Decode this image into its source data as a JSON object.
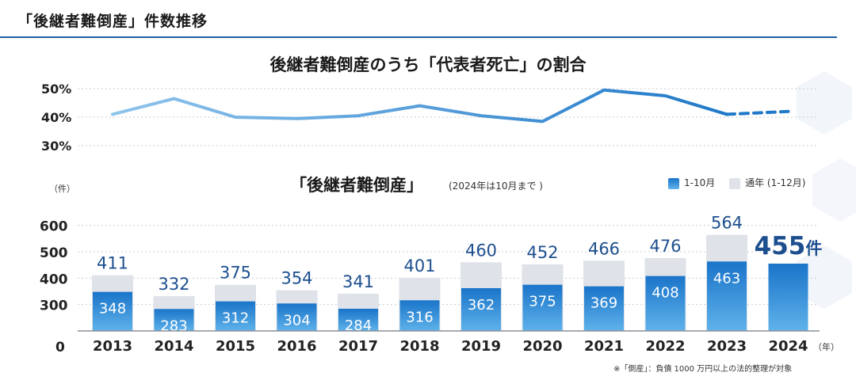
{
  "header": {
    "title": "「後継者難倒産」件数推移"
  },
  "colors": {
    "accent": "#1f5fa6",
    "fullYearBar": "#dfe2e8",
    "periodBarTop": "#1a74c9",
    "periodBarBottom": "#5fb2ea",
    "lineStart": "#8fc4ec",
    "lineEnd": "#1f78c8",
    "fullYearLabel": "#1d4f8f"
  },
  "chart_data": [
    {
      "type": "line",
      "title": "後継者難倒産のうち「代表者死亡」の割合",
      "x": [
        "2013",
        "2014",
        "2015",
        "2016",
        "2017",
        "2018",
        "2019",
        "2020",
        "2021",
        "2022",
        "2023",
        "2024"
      ],
      "values": [
        41,
        46.5,
        40,
        39.5,
        40.5,
        44,
        40.5,
        38.5,
        49.5,
        47.5,
        41,
        42
      ],
      "dashed_from_index": 10,
      "ylim": [
        30,
        50
      ],
      "yticks": [
        "50%",
        "40%",
        "30%"
      ],
      "grid": true
    },
    {
      "type": "bar",
      "title": "「後継者難倒産」",
      "title_note": "(2024年は10月まで )",
      "unit": "（件）",
      "categories": [
        "2013",
        "2014",
        "2015",
        "2016",
        "2017",
        "2018",
        "2019",
        "2020",
        "2021",
        "2022",
        "2023",
        "2024"
      ],
      "x_suffix": "（年）",
      "series": [
        {
          "name": "通年 (1-12月)",
          "values": [
            411,
            332,
            375,
            354,
            341,
            401,
            460,
            452,
            466,
            476,
            564,
            null
          ]
        },
        {
          "name": "1-10月",
          "values": [
            348,
            283,
            312,
            304,
            284,
            316,
            362,
            375,
            369,
            408,
            463,
            455
          ]
        }
      ],
      "highlight_label": {
        "value": "455",
        "suffix": "件"
      },
      "yticks": [
        "600",
        "500",
        "400",
        "300",
        "0"
      ],
      "legend": "top-right",
      "grid": true
    }
  ],
  "footnote": "※「倒産」：負債 1000 万円以上の法的整理が対象"
}
